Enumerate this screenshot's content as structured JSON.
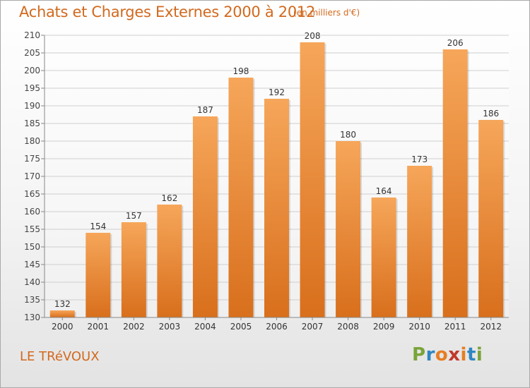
{
  "title": "Achats et Charges Externes 2000 à 2012",
  "unit": "(en milliers d'€)",
  "footer": {
    "place": "LE TRéVOUX",
    "logo": "Proxiti"
  },
  "colors": {
    "bar_top": "#f6a65a",
    "bar_bottom": "#d86f1c",
    "accent": "#d2691e",
    "grid": "#cfcfcf"
  },
  "chart_data": {
    "type": "bar",
    "title": "Achats et Charges Externes 2000 à 2012",
    "xlabel": "",
    "ylabel": "",
    "categories": [
      "2000",
      "2001",
      "2002",
      "2003",
      "2004",
      "2005",
      "2006",
      "2007",
      "2008",
      "2009",
      "2010",
      "2011",
      "2012"
    ],
    "values": [
      132,
      154,
      157,
      162,
      187,
      198,
      192,
      208,
      180,
      164,
      173,
      206,
      186
    ],
    "ylim": [
      130,
      210
    ],
    "yticks": [
      130,
      135,
      140,
      145,
      150,
      155,
      160,
      165,
      170,
      175,
      180,
      185,
      190,
      195,
      200,
      205,
      210
    ],
    "grid": true,
    "legend": "none"
  }
}
